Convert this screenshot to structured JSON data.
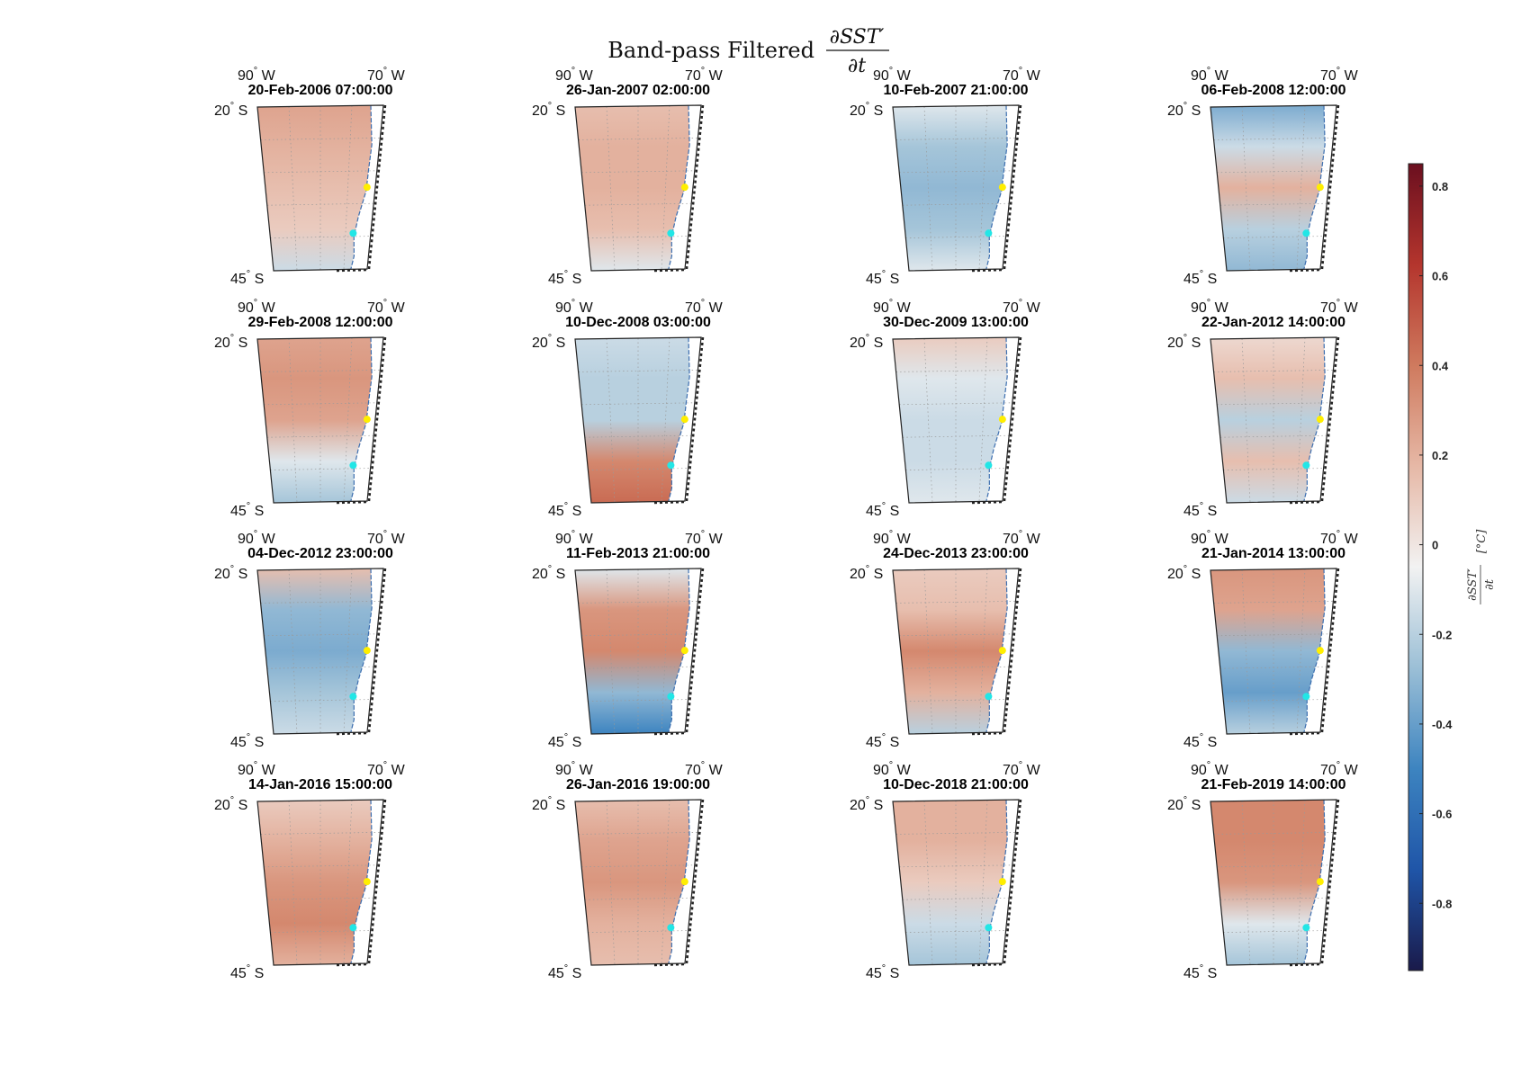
{
  "figure": {
    "title_prefix": "Band-pass Filtered",
    "title_numerator": "∂SST′",
    "title_denominator": "∂t"
  },
  "chart_data": {
    "type": "heatmap",
    "title": "Band-pass Filtered ∂SST′/∂t",
    "map_extent": {
      "lon_west": -90,
      "lon_east": -70,
      "lat_north": -20,
      "lat_south": -45
    },
    "axis_labels": {
      "lon_west": "90",
      "lon_east": "70",
      "lon_suffix": "W",
      "lat_north": "20",
      "lat_south": "45",
      "lat_suffix": "S",
      "degree_symbol": "°"
    },
    "panels": [
      {
        "title": "20-Feb-2006 07:00:00",
        "pattern": [
          0.25,
          0.2,
          0.15,
          0.1,
          -0.15
        ]
      },
      {
        "title": "26-Jan-2007 02:00:00",
        "pattern": [
          0.15,
          0.2,
          0.2,
          0.15,
          -0.1
        ]
      },
      {
        "title": "10-Feb-2007 21:00:00",
        "pattern": [
          -0.1,
          -0.25,
          -0.3,
          -0.25,
          -0.1
        ]
      },
      {
        "title": "06-Feb-2008 12:00:00",
        "pattern": [
          -0.35,
          -0.15,
          0.2,
          -0.2,
          -0.3
        ]
      },
      {
        "title": "29-Feb-2008 12:00:00",
        "pattern": [
          0.25,
          0.3,
          0.25,
          -0.1,
          -0.25
        ]
      },
      {
        "title": "10-Dec-2008 03:00:00",
        "pattern": [
          -0.15,
          -0.2,
          -0.2,
          0.35,
          0.45
        ]
      },
      {
        "title": "30-Dec-2009 13:00:00",
        "pattern": [
          0.1,
          -0.1,
          -0.15,
          -0.15,
          -0.1
        ]
      },
      {
        "title": "22-Jan-2012 14:00:00",
        "pattern": [
          0.05,
          0.15,
          -0.2,
          0.15,
          -0.15
        ]
      },
      {
        "title": "04-Dec-2012 23:00:00",
        "pattern": [
          0.15,
          -0.3,
          -0.35,
          -0.25,
          -0.15
        ]
      },
      {
        "title": "11-Feb-2013 21:00:00",
        "pattern": [
          -0.1,
          0.3,
          0.35,
          -0.3,
          -0.5
        ]
      },
      {
        "title": "24-Dec-2013 23:00:00",
        "pattern": [
          0.1,
          0.15,
          0.35,
          0.2,
          -0.2
        ]
      },
      {
        "title": "21-Jan-2014 13:00:00",
        "pattern": [
          0.3,
          0.25,
          -0.3,
          -0.4,
          -0.2
        ]
      },
      {
        "title": "14-Jan-2016 15:00:00",
        "pattern": [
          0.1,
          0.2,
          0.3,
          0.35,
          0.2
        ]
      },
      {
        "title": "26-Jan-2016 19:00:00",
        "pattern": [
          0.15,
          0.25,
          0.3,
          0.2,
          0.15
        ]
      },
      {
        "title": "10-Dec-2018 21:00:00",
        "pattern": [
          0.2,
          0.2,
          0.1,
          -0.15,
          -0.25
        ]
      },
      {
        "title": "21-Feb-2019 14:00:00",
        "pattern": [
          0.35,
          0.35,
          0.3,
          -0.1,
          -0.25
        ]
      }
    ],
    "markers": [
      {
        "name": "yellow",
        "color": "#ffee00",
        "lat": -32.5,
        "lon": -71.5
      },
      {
        "name": "cyan",
        "color": "#22e6e6",
        "lat": -39.5,
        "lon": -73.5
      }
    ],
    "colorbar": {
      "min": -0.95,
      "max": 0.85,
      "ticks": [
        0.8,
        0.6,
        0.4,
        0.2,
        0,
        -0.2,
        -0.4,
        -0.6,
        -0.8
      ],
      "tick_labels": [
        "0.8",
        "0.6",
        "0.4",
        "0.2",
        "0",
        "-0.2",
        "-0.4",
        "-0.6",
        "-0.8"
      ],
      "label_numerator": "∂SST′",
      "label_denominator": "∂t",
      "label_unit": "[°C]",
      "colors": [
        "#1a1a4a",
        "#1f55a8",
        "#3d84c0",
        "#9bbfd6",
        "#f2f2f2",
        "#e6b8a6",
        "#cf7a5e",
        "#b4352d",
        "#6b0f1f"
      ]
    }
  }
}
